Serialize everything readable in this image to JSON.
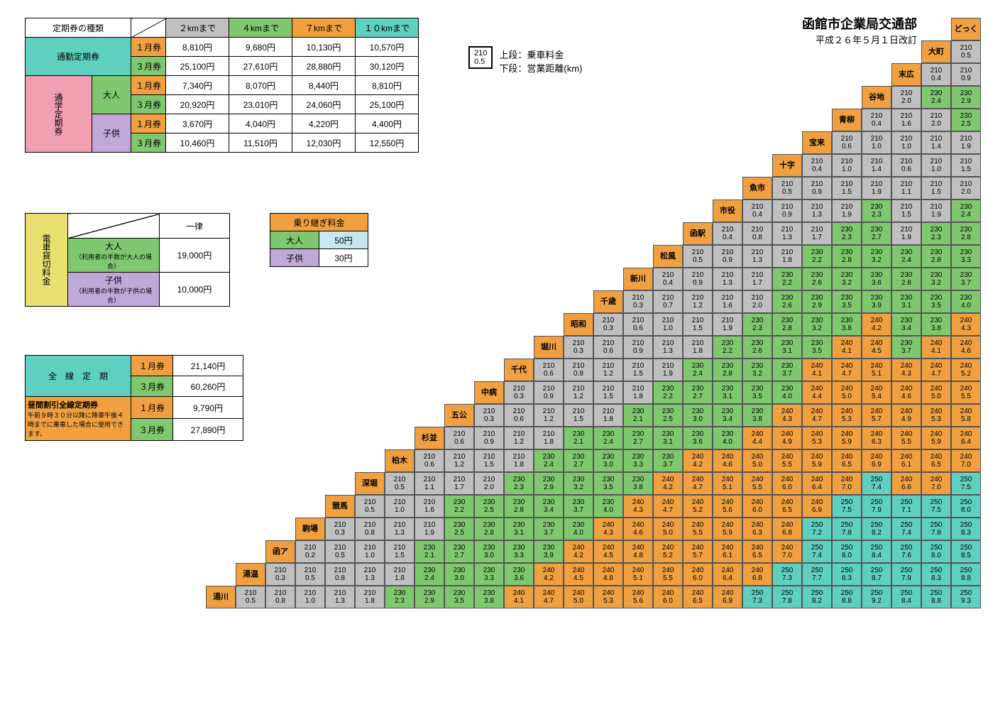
{
  "title": "函館市企業局交通部",
  "subtitle": "平成２６年５月１日改訂",
  "legend": {
    "fare_sample": "210",
    "dist_sample": "0.5",
    "fare_label": "上段：乗車料金",
    "dist_label": "下段：営業距離(km)"
  },
  "pass": {
    "header": [
      "定期券の種類",
      "",
      "２kmまで",
      "４kmまで",
      "７kmまで",
      "１０kmまで"
    ],
    "commute": {
      "label": "通勤定期券",
      "m1": "１月券",
      "m3": "３月券",
      "r1": [
        "8,810円",
        "9,680円",
        "10,130円",
        "10,570円"
      ],
      "r3": [
        "25,100円",
        "27,610円",
        "28,880円",
        "30,120円"
      ]
    },
    "student": {
      "label": "通学定期券",
      "adult": "大人",
      "child": "子供",
      "m1": "１月券",
      "m3": "３月券",
      "a1": [
        "7,340円",
        "8,070円",
        "8,440円",
        "8,810円"
      ],
      "a3": [
        "20,920円",
        "23,010円",
        "24,060円",
        "25,100円"
      ],
      "c1": [
        "3,670円",
        "4,040円",
        "4,220円",
        "4,400円"
      ],
      "c3": [
        "10,460円",
        "11,510円",
        "12,030円",
        "12,550円"
      ]
    }
  },
  "charter": {
    "label": "電車貸切料金",
    "flat": "一律",
    "adult": "大人",
    "adult_note": "（利用者の半数が大人の場合）",
    "adult_price": "19,000円",
    "child": "子供",
    "child_note": "（利用者の半数が子供の場合）",
    "child_price": "10,000円"
  },
  "transfer": {
    "label": "乗り継ぎ料金",
    "adult": "大人",
    "adult_price": "50円",
    "child": "子供",
    "child_price": "30円"
  },
  "allline": {
    "label": "全　線　定　期",
    "day_label": "昼間割引全線定期券",
    "day_note": "午前９時３０分以降に降車午後４時までに乗車した場合に使用できます。",
    "m1": "１月券",
    "m3": "３月券",
    "p1": "21,140円",
    "p3": "60,260円",
    "d1": "9,790円",
    "d3": "27,890円"
  },
  "stations": [
    "どっく",
    "大町",
    "末広",
    "谷地",
    "青柳",
    "宝来",
    "十字",
    "魚市",
    "市役",
    "函駅",
    "松風",
    "新川",
    "千歳",
    "昭和",
    "堀川",
    "千代",
    "中病",
    "五公",
    "杉並",
    "柏木",
    "深堀",
    "競馬",
    "駒場",
    "函ア",
    "湯温",
    "湯川"
  ],
  "colors": {
    "210": "c-gray",
    "230": "c-green",
    "240": "c-orange",
    "250": "c-teal"
  },
  "matrix": [
    [
      [
        "210",
        "0.5"
      ]
    ],
    [
      [
        "210",
        "0.4"
      ],
      [
        "210",
        "0.9"
      ]
    ],
    [
      [
        "210",
        "2.0"
      ],
      [
        "230",
        "2.4"
      ],
      [
        "230",
        "2.9"
      ]
    ],
    [
      [
        "210",
        "0.4"
      ],
      [
        "210",
        "1.6"
      ],
      [
        "210",
        "2.0"
      ],
      [
        "230",
        "2.5"
      ]
    ],
    [
      [
        "210",
        "0.6"
      ],
      [
        "210",
        "1.0"
      ],
      [
        "210",
        "1.0"
      ],
      [
        "210",
        "1.4"
      ],
      [
        "210",
        "1.9"
      ]
    ],
    [
      [
        "210",
        "0.4"
      ],
      [
        "210",
        "1.0"
      ],
      [
        "210",
        "1.4"
      ],
      [
        "210",
        "0.6"
      ],
      [
        "210",
        "1.0"
      ],
      [
        "210",
        "1.5"
      ]
    ],
    [
      [
        "210",
        "0.5"
      ],
      [
        "210",
        "0.9"
      ],
      [
        "210",
        "1.5"
      ],
      [
        "210",
        "1.9"
      ],
      [
        "210",
        "1.1"
      ],
      [
        "210",
        "1.5"
      ],
      [
        "210",
        "2.0"
      ]
    ],
    [
      [
        "210",
        "0.4"
      ],
      [
        "210",
        "0.9"
      ],
      [
        "210",
        "1.3"
      ],
      [
        "210",
        "1.9"
      ],
      [
        "230",
        "2.3"
      ],
      [
        "210",
        "1.5"
      ],
      [
        "210",
        "1.9"
      ],
      [
        "230",
        "2.4"
      ]
    ],
    [
      [
        "210",
        "0.4"
      ],
      [
        "210",
        "0.8"
      ],
      [
        "210",
        "1.3"
      ],
      [
        "210",
        "1.7"
      ],
      [
        "230",
        "2.3"
      ],
      [
        "230",
        "2.7"
      ],
      [
        "210",
        "1.9"
      ],
      [
        "230",
        "2.3"
      ],
      [
        "230",
        "2.8"
      ]
    ],
    [
      [
        "210",
        "0.5"
      ],
      [
        "210",
        "0.9"
      ],
      [
        "210",
        "1.3"
      ],
      [
        "210",
        "1.8"
      ],
      [
        "230",
        "2.2"
      ],
      [
        "230",
        "2.8"
      ],
      [
        "230",
        "3.2"
      ],
      [
        "230",
        "2.4"
      ],
      [
        "230",
        "2.8"
      ],
      [
        "230",
        "3.3"
      ]
    ],
    [
      [
        "210",
        "0.4"
      ],
      [
        "210",
        "0.9"
      ],
      [
        "210",
        "1.3"
      ],
      [
        "210",
        "1.7"
      ],
      [
        "230",
        "2.2"
      ],
      [
        "230",
        "2.6"
      ],
      [
        "230",
        "3.2"
      ],
      [
        "230",
        "3.6"
      ],
      [
        "230",
        "2.8"
      ],
      [
        "230",
        "3.2"
      ],
      [
        "230",
        "3.7"
      ]
    ],
    [
      [
        "210",
        "0.3"
      ],
      [
        "210",
        "0.7"
      ],
      [
        "210",
        "1.2"
      ],
      [
        "210",
        "1.6"
      ],
      [
        "210",
        "2.0"
      ],
      [
        "230",
        "2.6"
      ],
      [
        "230",
        "2.9"
      ],
      [
        "230",
        "3.5"
      ],
      [
        "230",
        "3.9"
      ],
      [
        "230",
        "3.1"
      ],
      [
        "230",
        "3.5"
      ],
      [
        "230",
        "4.0"
      ]
    ],
    [
      [
        "210",
        "0.3"
      ],
      [
        "210",
        "0.6"
      ],
      [
        "210",
        "1.0"
      ],
      [
        "210",
        "1.5"
      ],
      [
        "210",
        "1.9"
      ],
      [
        "230",
        "2.3"
      ],
      [
        "230",
        "2.8"
      ],
      [
        "230",
        "3.2"
      ],
      [
        "230",
        "3.8"
      ],
      [
        "240",
        "4.2"
      ],
      [
        "230",
        "3.4"
      ],
      [
        "230",
        "3.8"
      ],
      [
        "240",
        "4.3"
      ]
    ],
    [
      [
        "210",
        "0.3"
      ],
      [
        "210",
        "0.6"
      ],
      [
        "210",
        "0.9"
      ],
      [
        "210",
        "1.3"
      ],
      [
        "210",
        "1.8"
      ],
      [
        "230",
        "2.2"
      ],
      [
        "230",
        "2.6"
      ],
      [
        "230",
        "3.1"
      ],
      [
        "230",
        "3.5"
      ],
      [
        "240",
        "4.1"
      ],
      [
        "240",
        "4.5"
      ],
      [
        "230",
        "3.7"
      ],
      [
        "240",
        "4.1"
      ],
      [
        "240",
        "4.6"
      ]
    ],
    [
      [
        "210",
        "0.6"
      ],
      [
        "210",
        "0.9"
      ],
      [
        "210",
        "1.2"
      ],
      [
        "210",
        "1.5"
      ],
      [
        "210",
        "1.9"
      ],
      [
        "230",
        "2.4"
      ],
      [
        "230",
        "2.8"
      ],
      [
        "230",
        "3.2"
      ],
      [
        "230",
        "3.7"
      ],
      [
        "240",
        "4.1"
      ],
      [
        "240",
        "4.7"
      ],
      [
        "240",
        "5.1"
      ],
      [
        "240",
        "4.3"
      ],
      [
        "240",
        "4.7"
      ],
      [
        "240",
        "5.2"
      ]
    ],
    [
      [
        "210",
        "0.3"
      ],
      [
        "210",
        "0.9"
      ],
      [
        "210",
        "1.2"
      ],
      [
        "210",
        "1.5"
      ],
      [
        "210",
        "1.8"
      ],
      [
        "230",
        "2.2"
      ],
      [
        "230",
        "2.7"
      ],
      [
        "230",
        "3.1"
      ],
      [
        "230",
        "3.5"
      ],
      [
        "230",
        "4.0"
      ],
      [
        "240",
        "4.4"
      ],
      [
        "240",
        "5.0"
      ],
      [
        "240",
        "5.4"
      ],
      [
        "240",
        "4.6"
      ],
      [
        "240",
        "5.0"
      ],
      [
        "240",
        "5.5"
      ]
    ],
    [
      [
        "210",
        "0.3"
      ],
      [
        "210",
        "0.6"
      ],
      [
        "210",
        "1.2"
      ],
      [
        "210",
        "1.5"
      ],
      [
        "210",
        "1.8"
      ],
      [
        "230",
        "2.1"
      ],
      [
        "230",
        "2.5"
      ],
      [
        "230",
        "3.0"
      ],
      [
        "230",
        "3.4"
      ],
      [
        "230",
        "3.8"
      ],
      [
        "240",
        "4.3"
      ],
      [
        "240",
        "4.7"
      ],
      [
        "240",
        "5.3"
      ],
      [
        "240",
        "5.7"
      ],
      [
        "240",
        "4.9"
      ],
      [
        "240",
        "5.3"
      ],
      [
        "240",
        "5.8"
      ]
    ],
    [
      [
        "210",
        "0.6"
      ],
      [
        "210",
        "0.9"
      ],
      [
        "210",
        "1.2"
      ],
      [
        "210",
        "1.8"
      ],
      [
        "230",
        "2.1"
      ],
      [
        "230",
        "2.4"
      ],
      [
        "230",
        "2.7"
      ],
      [
        "230",
        "3.1"
      ],
      [
        "230",
        "3.6"
      ],
      [
        "230",
        "4.0"
      ],
      [
        "240",
        "4.4"
      ],
      [
        "240",
        "4.9"
      ],
      [
        "240",
        "5.3"
      ],
      [
        "240",
        "5.9"
      ],
      [
        "240",
        "6.3"
      ],
      [
        "240",
        "5.5"
      ],
      [
        "240",
        "5.9"
      ],
      [
        "240",
        "6.4"
      ]
    ],
    [
      [
        "210",
        "0.6"
      ],
      [
        "210",
        "1.2"
      ],
      [
        "210",
        "1.5"
      ],
      [
        "210",
        "1.8"
      ],
      [
        "230",
        "2.4"
      ],
      [
        "230",
        "2.7"
      ],
      [
        "230",
        "3.0"
      ],
      [
        "230",
        "3.3"
      ],
      [
        "230",
        "3.7"
      ],
      [
        "240",
        "4.2"
      ],
      [
        "240",
        "4.6"
      ],
      [
        "240",
        "5.0"
      ],
      [
        "240",
        "5.5"
      ],
      [
        "240",
        "5.9"
      ],
      [
        "240",
        "6.5"
      ],
      [
        "240",
        "6.9"
      ],
      [
        "240",
        "6.1"
      ],
      [
        "240",
        "6.5"
      ],
      [
        "240",
        "7.0"
      ]
    ],
    [
      [
        "210",
        "0.5"
      ],
      [
        "210",
        "1.1"
      ],
      [
        "210",
        "1.7"
      ],
      [
        "210",
        "2.0"
      ],
      [
        "230",
        "2.3"
      ],
      [
        "230",
        "2.9"
      ],
      [
        "230",
        "3.2"
      ],
      [
        "230",
        "3.5"
      ],
      [
        "230",
        "3.8"
      ],
      [
        "240",
        "4.2"
      ],
      [
        "240",
        "4.7"
      ],
      [
        "240",
        "5.1"
      ],
      [
        "240",
        "5.5"
      ],
      [
        "240",
        "6.0"
      ],
      [
        "240",
        "6.4"
      ],
      [
        "240",
        "7.0"
      ],
      [
        "250",
        "7.4"
      ],
      [
        "240",
        "6.6"
      ],
      [
        "240",
        "7.0"
      ],
      [
        "250",
        "7.5"
      ]
    ],
    [
      [
        "210",
        "0.5"
      ],
      [
        "210",
        "1.0"
      ],
      [
        "210",
        "1.6"
      ],
      [
        "230",
        "2.2"
      ],
      [
        "230",
        "2.5"
      ],
      [
        "230",
        "2.8"
      ],
      [
        "230",
        "3.4"
      ],
      [
        "230",
        "3.7"
      ],
      [
        "230",
        "4.0"
      ],
      [
        "240",
        "4.3"
      ],
      [
        "240",
        "4.7"
      ],
      [
        "240",
        "5.2"
      ],
      [
        "240",
        "5.6"
      ],
      [
        "240",
        "6.0"
      ],
      [
        "240",
        "6.5"
      ],
      [
        "240",
        "6.9"
      ],
      [
        "250",
        "7.5"
      ],
      [
        "250",
        "7.9"
      ],
      [
        "250",
        "7.1"
      ],
      [
        "250",
        "7.5"
      ],
      [
        "250",
        "8.0"
      ]
    ],
    [
      [
        "210",
        "0.3"
      ],
      [
        "210",
        "0.8"
      ],
      [
        "210",
        "1.3"
      ],
      [
        "210",
        "1.9"
      ],
      [
        "230",
        "2.5"
      ],
      [
        "230",
        "2.8"
      ],
      [
        "230",
        "3.1"
      ],
      [
        "230",
        "3.7"
      ],
      [
        "230",
        "4.0"
      ],
      [
        "240",
        "4.3"
      ],
      [
        "240",
        "4.6"
      ],
      [
        "240",
        "5.0"
      ],
      [
        "240",
        "5.5"
      ],
      [
        "240",
        "5.9"
      ],
      [
        "240",
        "6.3"
      ],
      [
        "240",
        "6.8"
      ],
      [
        "250",
        "7.2"
      ],
      [
        "250",
        "7.8"
      ],
      [
        "250",
        "8.2"
      ],
      [
        "250",
        "7.4"
      ],
      [
        "250",
        "7.8"
      ],
      [
        "250",
        "8.3"
      ]
    ],
    [
      [
        "210",
        "0.2"
      ],
      [
        "210",
        "0.5"
      ],
      [
        "210",
        "1.0"
      ],
      [
        "210",
        "1.5"
      ],
      [
        "230",
        "2.1"
      ],
      [
        "230",
        "2.7"
      ],
      [
        "230",
        "3.0"
      ],
      [
        "230",
        "3.3"
      ],
      [
        "230",
        "3.9"
      ],
      [
        "240",
        "4.2"
      ],
      [
        "240",
        "4.5"
      ],
      [
        "240",
        "4.8"
      ],
      [
        "240",
        "5.2"
      ],
      [
        "240",
        "5.7"
      ],
      [
        "240",
        "6.1"
      ],
      [
        "240",
        "6.5"
      ],
      [
        "240",
        "7.0"
      ],
      [
        "250",
        "7.4"
      ],
      [
        "250",
        "8.0"
      ],
      [
        "250",
        "8.4"
      ],
      [
        "250",
        "7.6"
      ],
      [
        "250",
        "8.0"
      ],
      [
        "250",
        "8.5"
      ]
    ],
    [
      [
        "210",
        "0.3"
      ],
      [
        "210",
        "0.5"
      ],
      [
        "210",
        "0.8"
      ],
      [
        "210",
        "1.3"
      ],
      [
        "210",
        "1.8"
      ],
      [
        "230",
        "2.4"
      ],
      [
        "230",
        "3.0"
      ],
      [
        "230",
        "3.3"
      ],
      [
        "230",
        "3.6"
      ],
      [
        "240",
        "4.2"
      ],
      [
        "240",
        "4.5"
      ],
      [
        "240",
        "4.8"
      ],
      [
        "240",
        "5.1"
      ],
      [
        "240",
        "5.5"
      ],
      [
        "240",
        "6.0"
      ],
      [
        "240",
        "6.4"
      ],
      [
        "240",
        "6.8"
      ],
      [
        "250",
        "7.3"
      ],
      [
        "250",
        "7.7"
      ],
      [
        "250",
        "8.3"
      ],
      [
        "250",
        "8.7"
      ],
      [
        "250",
        "7.9"
      ],
      [
        "250",
        "8.3"
      ],
      [
        "250",
        "8.8"
      ]
    ],
    [
      [
        "210",
        "0.5"
      ],
      [
        "210",
        "0.8"
      ],
      [
        "210",
        "1.0"
      ],
      [
        "210",
        "1.3"
      ],
      [
        "210",
        "1.8"
      ],
      [
        "230",
        "2.3"
      ],
      [
        "230",
        "2.9"
      ],
      [
        "230",
        "3.5"
      ],
      [
        "230",
        "3.8"
      ],
      [
        "240",
        "4.1"
      ],
      [
        "240",
        "4.7"
      ],
      [
        "240",
        "5.0"
      ],
      [
        "240",
        "5.3"
      ],
      [
        "240",
        "5.6"
      ],
      [
        "240",
        "6.0"
      ],
      [
        "240",
        "6.5"
      ],
      [
        "240",
        "6.9"
      ],
      [
        "250",
        "7.3"
      ],
      [
        "250",
        "7.8"
      ],
      [
        "250",
        "8.2"
      ],
      [
        "250",
        "8.8"
      ],
      [
        "250",
        "9.2"
      ],
      [
        "250",
        "8.4"
      ],
      [
        "250",
        "8.8"
      ],
      [
        "250",
        "9.3"
      ]
    ]
  ]
}
